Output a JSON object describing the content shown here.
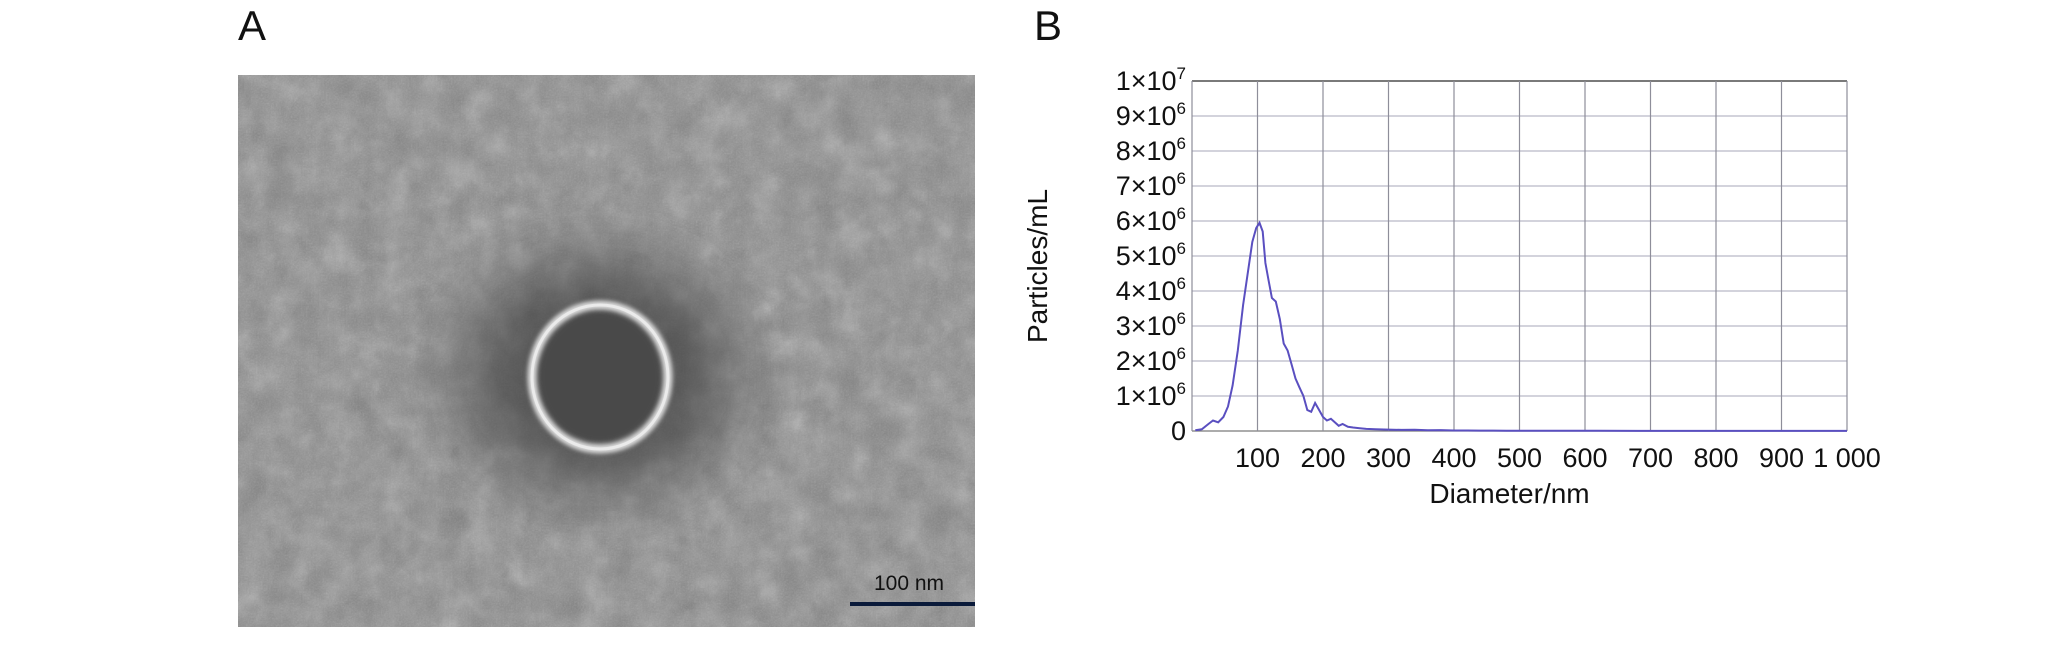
{
  "panels": {
    "a_label": "A",
    "b_label": "B"
  },
  "tem": {
    "scale_bar_label": "100 nm",
    "background_color": "#8a8a8a",
    "ring_color": "#e6e6e6"
  },
  "chart_data": {
    "type": "line",
    "xlabel": "Diameter/nm",
    "ylabel": "Particles/mL",
    "xlim": [
      0,
      1000
    ],
    "ylim": [
      0,
      10000000
    ],
    "grid": true,
    "line_color": "#5a4fc0",
    "x_ticks": [
      100,
      200,
      300,
      400,
      500,
      600,
      700,
      800,
      900,
      1000
    ],
    "x_tick_labels": [
      "100",
      "200",
      "300",
      "400",
      "500",
      "600",
      "700",
      "800",
      "900",
      "1 000"
    ],
    "y_ticks": [
      {
        "value": 0,
        "base": "0",
        "exp": ""
      },
      {
        "value": 1000000,
        "base": "1×10",
        "exp": "6"
      },
      {
        "value": 2000000,
        "base": "2×10",
        "exp": "6"
      },
      {
        "value": 3000000,
        "base": "3×10",
        "exp": "6"
      },
      {
        "value": 4000000,
        "base": "4×10",
        "exp": "6"
      },
      {
        "value": 5000000,
        "base": "5×10",
        "exp": "6"
      },
      {
        "value": 6000000,
        "base": "6×10",
        "exp": "6"
      },
      {
        "value": 7000000,
        "base": "7×10",
        "exp": "6"
      },
      {
        "value": 8000000,
        "base": "8×10",
        "exp": "6"
      },
      {
        "value": 9000000,
        "base": "9×10",
        "exp": "6"
      },
      {
        "value": 10000000,
        "base": "1×10",
        "exp": "7"
      }
    ],
    "series": [
      {
        "x": [
          5,
          15,
          25,
          32,
          40,
          48,
          55,
          62,
          70,
          78,
          85,
          92,
          98,
          103,
          108,
          112,
          117,
          122,
          128,
          134,
          140,
          146,
          152,
          158,
          164,
          170,
          176,
          182,
          188,
          194,
          200,
          206,
          212,
          218,
          224,
          230,
          238,
          246,
          256,
          266,
          280,
          300,
          320,
          340,
          360,
          380,
          400,
          420,
          440,
          460,
          480,
          500,
          540,
          580,
          620,
          680,
          740,
          800,
          860,
          920,
          980,
          1000
        ],
        "y": [
          20000,
          50000,
          200000,
          300000,
          250000,
          400000,
          700000,
          1300000,
          2300000,
          3600000,
          4500000,
          5400000,
          5800000,
          5950000,
          5700000,
          4800000,
          4300000,
          3800000,
          3700000,
          3200000,
          2500000,
          2300000,
          1900000,
          1500000,
          1250000,
          1000000,
          600000,
          550000,
          800000,
          600000,
          400000,
          300000,
          350000,
          250000,
          150000,
          200000,
          120000,
          100000,
          80000,
          60000,
          50000,
          40000,
          30000,
          35000,
          20000,
          25000,
          15000,
          15000,
          10000,
          12000,
          8000,
          8000,
          6000,
          5000,
          5000,
          4000,
          4000,
          3000,
          3000,
          3000,
          2000,
          2000
        ]
      }
    ]
  }
}
